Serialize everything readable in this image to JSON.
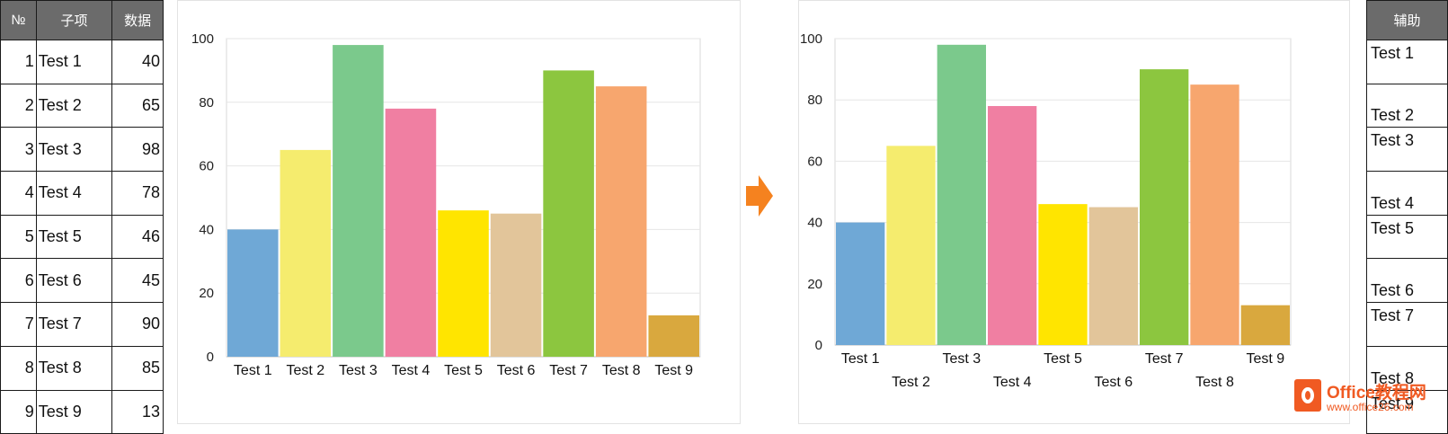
{
  "table": {
    "headers": {
      "index": "№",
      "item": "子项",
      "value": "数据"
    },
    "rows": [
      {
        "index": "1",
        "item": "Test 1",
        "value": "40"
      },
      {
        "index": "2",
        "item": "Test 2",
        "value": "65"
      },
      {
        "index": "3",
        "item": "Test 3",
        "value": "98"
      },
      {
        "index": "4",
        "item": "Test 4",
        "value": "78"
      },
      {
        "index": "5",
        "item": "Test 5",
        "value": "46"
      },
      {
        "index": "6",
        "item": "Test 6",
        "value": "45"
      },
      {
        "index": "7",
        "item": "Test 7",
        "value": "90"
      },
      {
        "index": "8",
        "item": "Test 8",
        "value": "85"
      },
      {
        "index": "9",
        "item": "Test 9",
        "value": "13"
      }
    ]
  },
  "helper_table": {
    "header": "辅助",
    "cells": [
      "Test 1",
      "Test 2",
      "Test 3",
      "Test 4",
      "Test 5",
      "Test 6",
      "Test 7",
      "Test 8",
      "Test 9"
    ]
  },
  "chart_data": [
    {
      "type": "bar",
      "categories": [
        "Test 1",
        "Test 2",
        "Test 3",
        "Test 4",
        "Test 5",
        "Test 6",
        "Test 7",
        "Test 8",
        "Test 9"
      ],
      "values": [
        40,
        65,
        98,
        78,
        46,
        45,
        90,
        85,
        13
      ],
      "colors": [
        "#6fa8d6",
        "#f5ec6e",
        "#7bc98c",
        "#f07fa2",
        "#ffe500",
        "#e2c59a",
        "#8cc63f",
        "#f7a66e",
        "#d9a83e"
      ],
      "ylim": [
        0,
        100
      ],
      "yticks": [
        "0",
        "20",
        "40",
        "60",
        "80",
        "100"
      ],
      "grid": true,
      "x_label_layout": "single-row"
    },
    {
      "type": "bar",
      "categories": [
        "Test 1",
        "Test 2",
        "Test 3",
        "Test 4",
        "Test 5",
        "Test 6",
        "Test 7",
        "Test 8",
        "Test 9"
      ],
      "values": [
        40,
        65,
        98,
        78,
        46,
        45,
        90,
        85,
        13
      ],
      "colors": [
        "#6fa8d6",
        "#f5ec6e",
        "#7bc98c",
        "#f07fa2",
        "#ffe500",
        "#e2c59a",
        "#8cc63f",
        "#f7a66e",
        "#d9a83e"
      ],
      "ylim": [
        0,
        100
      ],
      "yticks": [
        "0",
        "20",
        "40",
        "60",
        "80",
        "100"
      ],
      "grid": true,
      "x_label_layout": "staggered"
    }
  ],
  "watermark": {
    "title": "Office教程网",
    "url": "www.office26.com"
  },
  "colors": {
    "arrow": "#f5821f",
    "header_bg": "#6b6b6b",
    "grid": "#e6e6e6"
  }
}
